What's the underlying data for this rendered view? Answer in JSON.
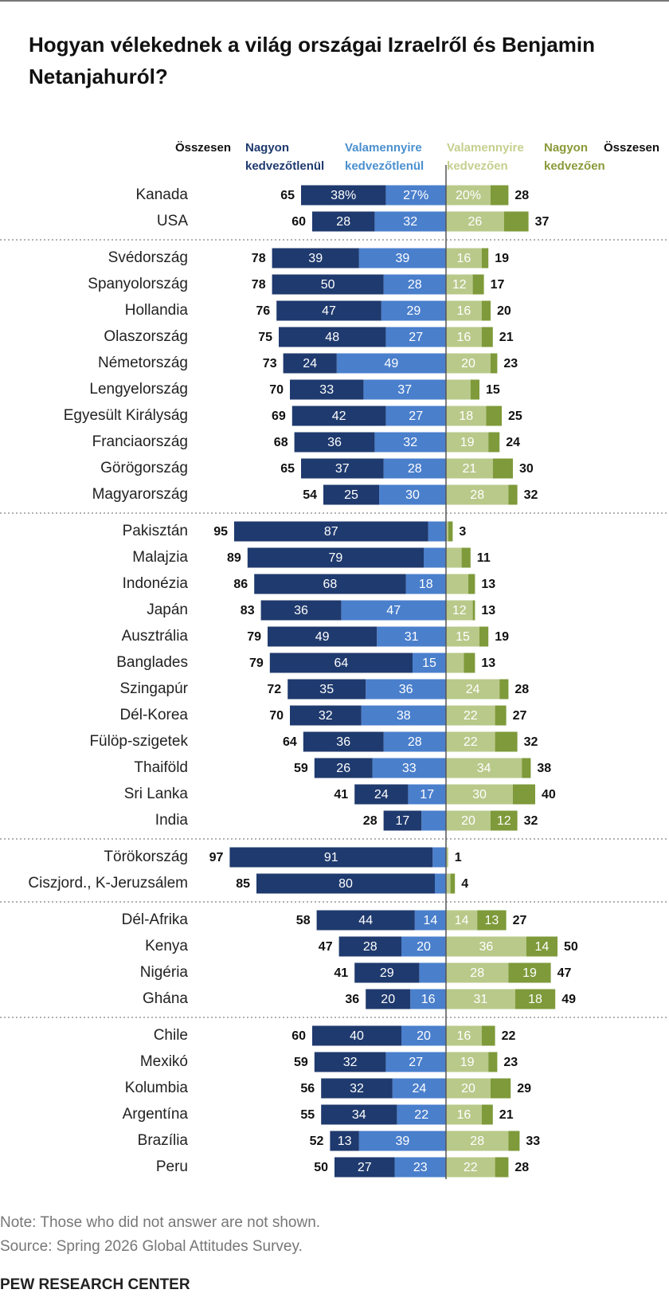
{
  "chart_data": {
    "type": "diverging-bar",
    "title": "Hogyan vélekednek a világ országai Izraelről és Benjamin Netanjahuról?",
    "categories": [
      "Kanada",
      "USA",
      "Svédország",
      "Spanyolország",
      "Hollandia",
      "Olaszország",
      "Németország",
      "Lengyelország",
      "Egyesült Királyság",
      "Franciaország",
      "Görögország",
      "Magyarország",
      "Pakisztán",
      "Malajzia",
      "Indonézia",
      "Japán",
      "Ausztrália",
      "Banglades",
      "Szingapúr",
      "Dél-Korea",
      "Fülöp-szigetek",
      "Thaiföld",
      "Sri Lanka",
      "India",
      "Törökország",
      "Ciszjord., K-Jeruzsálem",
      "Dél-Afrika",
      "Kenya",
      "Nigéria",
      "Ghána",
      "Chile",
      "Mexikó",
      "Kolumbia",
      "Argentína",
      "Brazília",
      "Peru"
    ],
    "series": [
      {
        "name": "Nagyon kedvezőtlenül",
        "color": "#1f3a6e",
        "side": "negative",
        "values": [
          38,
          28,
          39,
          50,
          47,
          48,
          24,
          33,
          42,
          36,
          37,
          25,
          87,
          79,
          68,
          36,
          49,
          64,
          35,
          32,
          36,
          26,
          24,
          17,
          91,
          80,
          44,
          28,
          29,
          20,
          40,
          32,
          32,
          34,
          13,
          27
        ],
        "value_labels": [
          "38%",
          "28",
          "39",
          "50",
          "47",
          "48",
          "24",
          "33",
          "42",
          "36",
          "37",
          "25",
          "87",
          "79",
          "68",
          "36",
          "49",
          "64",
          "35",
          "32",
          "36",
          "26",
          "24",
          "17",
          "91",
          "80",
          "44",
          "28",
          "29",
          "20",
          "40",
          "32",
          "32",
          "34",
          "13",
          "27"
        ]
      },
      {
        "name": "Valamennyire kedvezőtlenül",
        "color": "#4a7fcc",
        "side": "negative",
        "values": [
          27,
          32,
          39,
          28,
          29,
          27,
          49,
          37,
          27,
          32,
          28,
          30,
          8,
          10,
          18,
          47,
          31,
          15,
          36,
          38,
          28,
          33,
          17,
          11,
          6,
          5,
          14,
          20,
          12,
          16,
          20,
          27,
          24,
          22,
          39,
          23
        ],
        "value_labels": [
          "27%",
          "32",
          "39",
          "28",
          "29",
          "27",
          "49",
          "37",
          "27",
          "32",
          "28",
          "30",
          null,
          null,
          "18",
          "47",
          "31",
          "15",
          "36",
          "38",
          "28",
          "33",
          "17",
          null,
          null,
          null,
          "14",
          "20",
          null,
          "16",
          "20",
          "27",
          "24",
          "22",
          "39",
          "23"
        ]
      },
      {
        "name": "Valamennyire kedvezően",
        "color": "#b9c98a",
        "side": "positive",
        "values": [
          20,
          26,
          16,
          12,
          16,
          16,
          20,
          11,
          18,
          19,
          21,
          28,
          1,
          7,
          10,
          12,
          15,
          8,
          24,
          22,
          22,
          34,
          30,
          20,
          1,
          2,
          14,
          36,
          28,
          31,
          16,
          19,
          20,
          16,
          28,
          22
        ],
        "value_labels": [
          "20%",
          "26",
          "16",
          "12",
          "16",
          "16",
          "20",
          null,
          "18",
          "19",
          "21",
          "28",
          null,
          null,
          null,
          "12",
          "15",
          null,
          "24",
          "22",
          "22",
          "34",
          "30",
          "20",
          null,
          null,
          "14",
          "36",
          "28",
          "31",
          "16",
          "19",
          "20",
          "16",
          "28",
          "22"
        ]
      },
      {
        "name": "Nagyon kedvezően",
        "color": "#7e9a3a",
        "side": "positive",
        "values": [
          8,
          11,
          3,
          5,
          4,
          5,
          3,
          4,
          7,
          5,
          9,
          4,
          2,
          4,
          3,
          1,
          4,
          5,
          4,
          5,
          10,
          4,
          10,
          12,
          0,
          2,
          13,
          14,
          19,
          18,
          6,
          4,
          9,
          5,
          5,
          6
        ],
        "value_labels": [
          null,
          null,
          null,
          null,
          null,
          null,
          null,
          null,
          null,
          null,
          null,
          null,
          null,
          null,
          null,
          null,
          null,
          null,
          null,
          null,
          null,
          null,
          null,
          "12",
          null,
          null,
          "13",
          "14",
          "19",
          "18",
          null,
          null,
          null,
          null,
          null,
          null
        ]
      }
    ],
    "negative_totals": {
      "name": "Összesen",
      "values": [
        65,
        60,
        78,
        78,
        76,
        75,
        73,
        70,
        69,
        68,
        65,
        54,
        95,
        89,
        86,
        83,
        79,
        79,
        72,
        70,
        64,
        59,
        41,
        28,
        97,
        85,
        58,
        47,
        41,
        36,
        60,
        59,
        56,
        55,
        52,
        50
      ]
    },
    "positive_totals": {
      "name": "Összesen",
      "values": [
        28,
        37,
        19,
        17,
        20,
        21,
        23,
        15,
        25,
        24,
        30,
        32,
        3,
        11,
        13,
        13,
        19,
        13,
        28,
        27,
        32,
        38,
        40,
        32,
        1,
        4,
        27,
        50,
        47,
        49,
        22,
        23,
        29,
        21,
        33,
        28
      ]
    },
    "note": "Note: Those who did not answer are not shown.",
    "source": "Source: Spring 2026 Global Attitudes Survey.",
    "credit": "PEW RESEARCH CENTER"
  }
}
